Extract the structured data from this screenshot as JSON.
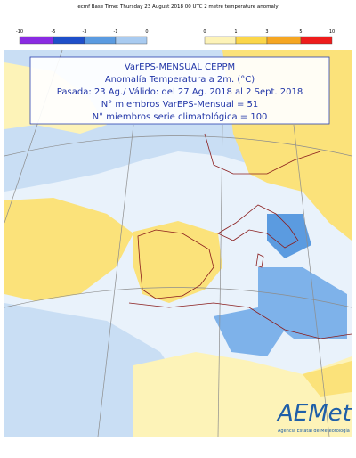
{
  "header": {
    "title": "ecmf  Base Time: Thursday 23 August 2018 00 UTC 2 metre temperature anomaly"
  },
  "legend": {
    "negative_ticks": [
      -10,
      -5,
      -3,
      -1,
      0
    ],
    "positive_ticks": [
      0,
      1,
      3,
      5,
      10
    ]
  },
  "info_box": {
    "lines": [
      "VarEPS-MENSUAL CEPPM",
      "Anomalía Temperatura a 2m. (°C)",
      "Pasada: 23 Ag./ Válido: del 27 Ag. 2018 al 2 Sept. 2018",
      "N° miembros VarEPS-Mensual = 51",
      "N° miembros serie climatológica = 100"
    ]
  },
  "logo": {
    "name": "AEMet",
    "subtitle": "Agencia Estatal de Meteorología"
  }
}
